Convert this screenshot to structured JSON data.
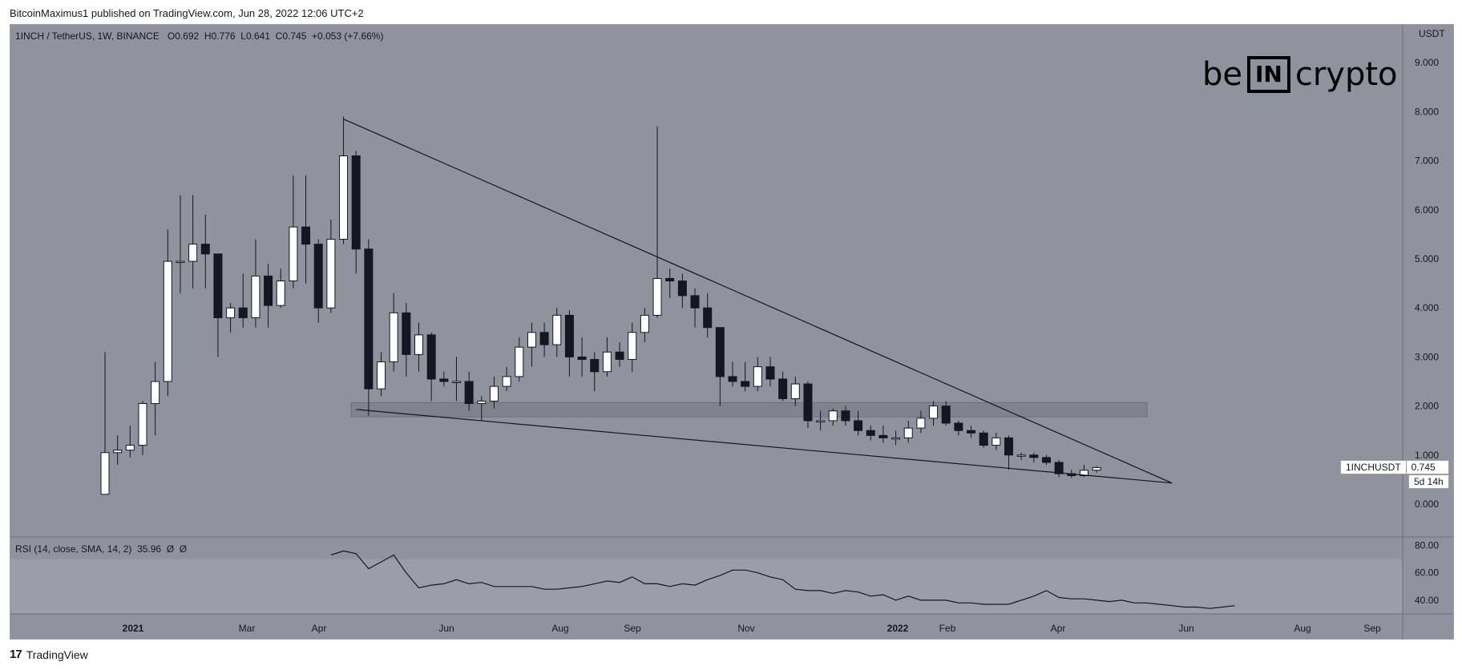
{
  "header": {
    "publisher_line": "BitcoinMaximus1 published on TradingView.com, Jun 28, 2022 12:06 UTC+2"
  },
  "footer": {
    "brand": "TradingView",
    "logo_glyph": "17"
  },
  "watermark": {
    "left": "be",
    "box": "IN",
    "right": "crypto"
  },
  "legend": {
    "pair": "1INCH / TetherUS, 1W, BINANCE",
    "o_label": "O",
    "o": "0.692",
    "h_label": "H",
    "h": "0.776",
    "l_label": "L",
    "l": "0.641",
    "c_label": "C",
    "c": "0.745",
    "change": "+0.053 (+7.66%)"
  },
  "rsi_legend": {
    "label": "RSI (14, close, SMA, 14, 2)",
    "value": "35.96",
    "extra1": "Ø",
    "extra2": "Ø"
  },
  "price_tag": {
    "symbol": "1INCHUSDT",
    "value": "0.745",
    "countdown": "5d 14h"
  },
  "colors": {
    "panel_bg": "#8f939d",
    "rsi_band": "#9a9ea8",
    "up": "#ffffff",
    "down": "#131722",
    "line": "#131722",
    "zone": "#7a7e88"
  },
  "chart_data": {
    "type": "candlestick",
    "title": "1INCH / TetherUS, 1W, BINANCE",
    "y_unit": "USDT",
    "ylim": [
      0,
      9.5
    ],
    "y_ticks": [
      "9.000",
      "8.000",
      "7.000",
      "6.000",
      "5.000",
      "4.000",
      "3.000",
      "2.000",
      "1.000",
      "0.000"
    ],
    "x_ticks": [
      "2021",
      "Mar",
      "Apr",
      "Jun",
      "Aug",
      "Sep",
      "Nov",
      "2022",
      "Feb",
      "Apr",
      "Jun",
      "Aug",
      "Sep"
    ],
    "candles": [
      {
        "o": 0.2,
        "h": 3.1,
        "l": 0.2,
        "c": 1.05
      },
      {
        "o": 1.05,
        "h": 1.4,
        "l": 0.8,
        "c": 1.1
      },
      {
        "o": 1.1,
        "h": 1.6,
        "l": 0.95,
        "c": 1.2
      },
      {
        "o": 1.2,
        "h": 2.1,
        "l": 1.0,
        "c": 2.05
      },
      {
        "o": 2.05,
        "h": 2.9,
        "l": 1.4,
        "c": 2.5
      },
      {
        "o": 2.5,
        "h": 5.6,
        "l": 2.2,
        "c": 4.95
      },
      {
        "o": 4.95,
        "h": 6.3,
        "l": 4.3,
        "c": 4.95
      },
      {
        "o": 4.95,
        "h": 6.3,
        "l": 4.4,
        "c": 5.3
      },
      {
        "o": 5.3,
        "h": 5.9,
        "l": 4.4,
        "c": 5.1
      },
      {
        "o": 5.1,
        "h": 5.1,
        "l": 3.0,
        "c": 3.8
      },
      {
        "o": 3.8,
        "h": 4.1,
        "l": 3.5,
        "c": 4.0
      },
      {
        "o": 4.0,
        "h": 4.7,
        "l": 3.6,
        "c": 3.8
      },
      {
        "o": 3.8,
        "h": 5.4,
        "l": 3.6,
        "c": 4.65
      },
      {
        "o": 4.65,
        "h": 4.9,
        "l": 3.6,
        "c": 4.05
      },
      {
        "o": 4.05,
        "h": 4.8,
        "l": 4.0,
        "c": 4.55
      },
      {
        "o": 4.55,
        "h": 6.7,
        "l": 4.4,
        "c": 5.65
      },
      {
        "o": 5.65,
        "h": 6.7,
        "l": 4.5,
        "c": 5.3
      },
      {
        "o": 5.3,
        "h": 5.4,
        "l": 3.7,
        "c": 4.0
      },
      {
        "o": 4.0,
        "h": 5.8,
        "l": 3.9,
        "c": 5.4
      },
      {
        "o": 5.4,
        "h": 7.9,
        "l": 5.3,
        "c": 7.1
      },
      {
        "o": 7.1,
        "h": 7.2,
        "l": 4.7,
        "c": 5.2
      },
      {
        "o": 5.2,
        "h": 5.4,
        "l": 1.8,
        "c": 2.35
      },
      {
        "o": 2.35,
        "h": 3.1,
        "l": 2.2,
        "c": 2.9
      },
      {
        "o": 2.9,
        "h": 4.3,
        "l": 2.7,
        "c": 3.9
      },
      {
        "o": 3.9,
        "h": 4.1,
        "l": 2.6,
        "c": 3.05
      },
      {
        "o": 3.05,
        "h": 3.7,
        "l": 2.7,
        "c": 3.45
      },
      {
        "o": 3.45,
        "h": 3.5,
        "l": 2.1,
        "c": 2.55
      },
      {
        "o": 2.55,
        "h": 2.7,
        "l": 2.4,
        "c": 2.5
      },
      {
        "o": 2.5,
        "h": 3.0,
        "l": 2.1,
        "c": 2.5
      },
      {
        "o": 2.5,
        "h": 2.7,
        "l": 1.9,
        "c": 2.05
      },
      {
        "o": 2.05,
        "h": 2.2,
        "l": 1.7,
        "c": 2.1
      },
      {
        "o": 2.1,
        "h": 2.6,
        "l": 1.95,
        "c": 2.4
      },
      {
        "o": 2.4,
        "h": 2.8,
        "l": 2.3,
        "c": 2.6
      },
      {
        "o": 2.6,
        "h": 3.4,
        "l": 2.5,
        "c": 3.2
      },
      {
        "o": 3.2,
        "h": 3.7,
        "l": 2.8,
        "c": 3.5
      },
      {
        "o": 3.5,
        "h": 3.7,
        "l": 3.0,
        "c": 3.25
      },
      {
        "o": 3.25,
        "h": 4.0,
        "l": 3.0,
        "c": 3.85
      },
      {
        "o": 3.85,
        "h": 3.95,
        "l": 2.6,
        "c": 3.0
      },
      {
        "o": 3.0,
        "h": 3.4,
        "l": 2.6,
        "c": 2.95
      },
      {
        "o": 2.95,
        "h": 3.1,
        "l": 2.3,
        "c": 2.7
      },
      {
        "o": 2.7,
        "h": 3.4,
        "l": 2.6,
        "c": 3.1
      },
      {
        "o": 3.1,
        "h": 3.3,
        "l": 2.8,
        "c": 2.95
      },
      {
        "o": 2.95,
        "h": 3.7,
        "l": 2.7,
        "c": 3.5
      },
      {
        "o": 3.5,
        "h": 4.0,
        "l": 3.3,
        "c": 3.85
      },
      {
        "o": 3.85,
        "h": 7.7,
        "l": 3.8,
        "c": 4.6
      },
      {
        "o": 4.6,
        "h": 4.8,
        "l": 4.2,
        "c": 4.55
      },
      {
        "o": 4.55,
        "h": 4.7,
        "l": 4.0,
        "c": 4.25
      },
      {
        "o": 4.25,
        "h": 4.4,
        "l": 3.6,
        "c": 4.0
      },
      {
        "o": 4.0,
        "h": 4.3,
        "l": 3.4,
        "c": 3.6
      },
      {
        "o": 3.6,
        "h": 3.6,
        "l": 2.0,
        "c": 2.6
      },
      {
        "o": 2.6,
        "h": 2.9,
        "l": 2.4,
        "c": 2.5
      },
      {
        "o": 2.5,
        "h": 2.9,
        "l": 2.3,
        "c": 2.4
      },
      {
        "o": 2.4,
        "h": 3.0,
        "l": 2.3,
        "c": 2.8
      },
      {
        "o": 2.8,
        "h": 3.0,
        "l": 2.4,
        "c": 2.55
      },
      {
        "o": 2.55,
        "h": 2.7,
        "l": 2.1,
        "c": 2.15
      },
      {
        "o": 2.15,
        "h": 2.6,
        "l": 2.0,
        "c": 2.45
      },
      {
        "o": 2.45,
        "h": 2.5,
        "l": 1.55,
        "c": 1.7
      },
      {
        "o": 1.7,
        "h": 1.9,
        "l": 1.5,
        "c": 1.7
      },
      {
        "o": 1.7,
        "h": 1.95,
        "l": 1.6,
        "c": 1.9
      },
      {
        "o": 1.9,
        "h": 2.0,
        "l": 1.6,
        "c": 1.7
      },
      {
        "o": 1.7,
        "h": 1.9,
        "l": 1.4,
        "c": 1.5
      },
      {
        "o": 1.5,
        "h": 1.6,
        "l": 1.3,
        "c": 1.4
      },
      {
        "o": 1.4,
        "h": 1.6,
        "l": 1.25,
        "c": 1.35
      },
      {
        "o": 1.35,
        "h": 1.5,
        "l": 1.2,
        "c": 1.35
      },
      {
        "o": 1.35,
        "h": 1.7,
        "l": 1.25,
        "c": 1.55
      },
      {
        "o": 1.55,
        "h": 1.9,
        "l": 1.45,
        "c": 1.75
      },
      {
        "o": 1.75,
        "h": 2.1,
        "l": 1.6,
        "c": 2.0
      },
      {
        "o": 2.0,
        "h": 2.1,
        "l": 1.6,
        "c": 1.65
      },
      {
        "o": 1.65,
        "h": 1.7,
        "l": 1.4,
        "c": 1.5
      },
      {
        "o": 1.5,
        "h": 1.6,
        "l": 1.35,
        "c": 1.45
      },
      {
        "o": 1.45,
        "h": 1.5,
        "l": 1.15,
        "c": 1.2
      },
      {
        "o": 1.2,
        "h": 1.45,
        "l": 1.1,
        "c": 1.35
      },
      {
        "o": 1.35,
        "h": 1.4,
        "l": 0.7,
        "c": 1.0
      },
      {
        "o": 1.0,
        "h": 1.05,
        "l": 0.9,
        "c": 1.0
      },
      {
        "o": 1.0,
        "h": 1.05,
        "l": 0.85,
        "c": 0.95
      },
      {
        "o": 0.95,
        "h": 1.0,
        "l": 0.8,
        "c": 0.85
      },
      {
        "o": 0.85,
        "h": 0.9,
        "l": 0.55,
        "c": 0.62
      },
      {
        "o": 0.62,
        "h": 0.7,
        "l": 0.53,
        "c": 0.58
      },
      {
        "o": 0.58,
        "h": 0.8,
        "l": 0.55,
        "c": 0.69
      },
      {
        "o": 0.692,
        "h": 0.776,
        "l": 0.641,
        "c": 0.745
      }
    ],
    "support_zone": [
      1.78,
      2.07
    ],
    "trendlines": [
      {
        "name": "upper",
        "from": {
          "i": 19,
          "y": 7.85
        },
        "to": {
          "i": 85,
          "y": 0.43
        }
      },
      {
        "name": "lower",
        "from": {
          "i": 20,
          "y": 1.93
        },
        "to": {
          "i": 85,
          "y": 0.43
        }
      }
    ],
    "rsi": {
      "ylim": [
        30,
        85
      ],
      "y_ticks": [
        "80.00",
        "60.00",
        "40.00"
      ],
      "band": [
        30,
        70
      ],
      "start_index": 18,
      "values": [
        73,
        76,
        74,
        63,
        68,
        73,
        60,
        49,
        51,
        52,
        55,
        52,
        53,
        50,
        50,
        50,
        50,
        48,
        48,
        49,
        50,
        52,
        54,
        53,
        57,
        52,
        52,
        50,
        52,
        51,
        55,
        58,
        62,
        62,
        60,
        57,
        55,
        48,
        47,
        47,
        45,
        47,
        46,
        43,
        44,
        40,
        43,
        40,
        40,
        40,
        38,
        38,
        37,
        37,
        37,
        40,
        43,
        47,
        42,
        41,
        41,
        40,
        39,
        40,
        38,
        38,
        37,
        36,
        35,
        35,
        34,
        35,
        36
      ]
    }
  }
}
